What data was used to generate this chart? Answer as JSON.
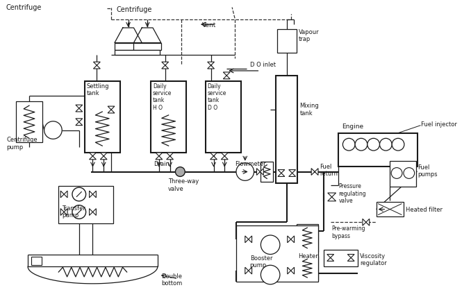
{
  "bg_color": "#ffffff",
  "line_color": "#000000",
  "figsize": [
    6.78,
    4.18
  ],
  "dpi": 100,
  "xlim": [
    0,
    678
  ],
  "ylim": [
    0,
    418
  ]
}
